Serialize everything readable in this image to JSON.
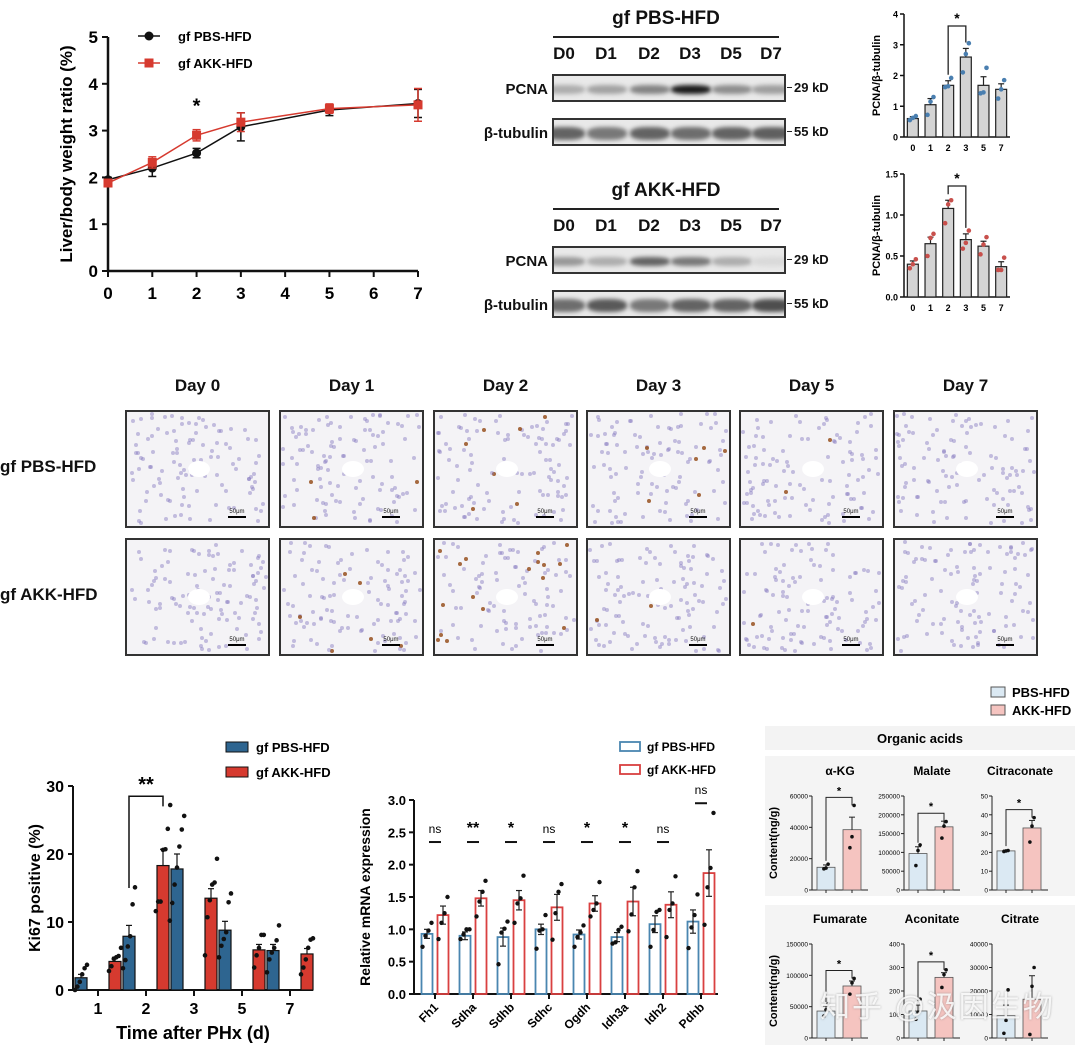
{
  "chart_data": [
    {
      "id": "liver-ratio",
      "type": "line",
      "title": "",
      "xlabel": "",
      "ylabel": "Liver/body weight ratio (%)",
      "x": [
        0,
        1,
        2,
        3,
        5,
        7
      ],
      "xticks": [
        "0",
        "1",
        "2",
        "3",
        "4",
        "5",
        "6",
        "7"
      ],
      "yticks": [
        "0",
        "1",
        "2",
        "3",
        "4",
        "5"
      ],
      "xlim": [
        0,
        7
      ],
      "ylim": [
        0,
        5
      ],
      "legend_position": "top-left",
      "series": [
        {
          "name": "gf PBS-HFD",
          "color": "#111111",
          "marker": "circle",
          "values": [
            1.95,
            2.2,
            2.52,
            3.08,
            3.44,
            3.58
          ],
          "err": [
            0.05,
            0.18,
            0.1,
            0.3,
            0.12,
            0.3
          ]
        },
        {
          "name": "gf AKK-HFD",
          "color": "#d63a2f",
          "marker": "square",
          "values": [
            1.88,
            2.32,
            2.9,
            3.18,
            3.47,
            3.55
          ],
          "err": [
            0.05,
            0.12,
            0.12,
            0.2,
            0.1,
            0.35
          ]
        }
      ],
      "annotations": [
        {
          "x": 2,
          "text": "*"
        }
      ]
    },
    {
      "id": "pcna-pbs",
      "type": "bar",
      "ylabel": "PCNA/β-tubulin",
      "categories": [
        "0",
        "1",
        "2",
        "3",
        "5",
        "7"
      ],
      "values": [
        0.6,
        1.05,
        1.68,
        2.6,
        1.68,
        1.55
      ],
      "err": [
        0.06,
        0.2,
        0.15,
        0.28,
        0.28,
        0.18
      ],
      "points": [
        [
          0.55,
          0.62,
          0.68
        ],
        [
          0.72,
          1.15,
          1.3
        ],
        [
          1.62,
          1.65,
          1.92
        ],
        [
          2.1,
          2.7,
          3.05
        ],
        [
          1.42,
          1.45,
          2.25
        ],
        [
          1.25,
          1.55,
          1.85
        ]
      ],
      "point_color": "#4a7fb0",
      "ylim": [
        0,
        4
      ],
      "yticks": [
        "0",
        "1",
        "2",
        "3",
        "4"
      ],
      "bracket": {
        "from": "2",
        "to": "3",
        "text": "*"
      }
    },
    {
      "id": "pcna-akk",
      "type": "bar",
      "ylabel": "PCNA/β-tubulin",
      "categories": [
        "0",
        "1",
        "2",
        "3",
        "5",
        "7"
      ],
      "values": [
        0.4,
        0.65,
        1.08,
        0.7,
        0.62,
        0.37
      ],
      "err": [
        0.04,
        0.08,
        0.1,
        0.07,
        0.06,
        0.06
      ],
      "points": [
        [
          0.35,
          0.4,
          0.46
        ],
        [
          0.5,
          0.72,
          0.77
        ],
        [
          0.9,
          1.13,
          1.18
        ],
        [
          0.59,
          0.66,
          0.81
        ],
        [
          0.52,
          0.64,
          0.73
        ],
        [
          0.33,
          0.33,
          0.48
        ]
      ],
      "point_color": "#c8504c",
      "ylim": [
        0,
        1.5
      ],
      "yticks": [
        "0.0",
        "0.5",
        "1.0",
        "1.5"
      ],
      "bracket": {
        "from": "2",
        "to": "3",
        "text": "*"
      }
    },
    {
      "id": "ki67",
      "type": "bar",
      "xlabel": "Time after PHx (d)",
      "ylabel": "Ki67 positive (%)",
      "categories": [
        "1",
        "2",
        "3",
        "5",
        "7"
      ],
      "ylim": [
        0,
        30
      ],
      "yticks": [
        "0",
        "10",
        "20",
        "30"
      ],
      "legend_position": "top-right",
      "series": [
        {
          "name": "gf PBS-HFD",
          "color": "#2e6590",
          "values": [
            1.8,
            7.9,
            17.8,
            8.8,
            5.8
          ],
          "err": [
            0.5,
            1.6,
            2.2,
            1.3,
            0.9
          ],
          "points": [
            [
              0,
              0.5,
              1.2,
              2.3,
              3.2,
              3.7
            ],
            [
              3.2,
              4.4,
              6.4,
              7.9,
              12.6,
              15.1
            ],
            [
              10.2,
              12.8,
              15.5,
              18,
              21.1,
              23.6,
              25.6
            ],
            [
              4.8,
              6.5,
              7.5,
              8.5,
              12.9,
              14.2
            ],
            [
              2.6,
              4.5,
              5.5,
              6.2,
              7.3,
              9.5
            ]
          ]
        },
        {
          "name": "gf AKK-HFD",
          "color": "#d63a2f",
          "values": [
            4.2,
            18.3,
            13.5,
            5.9,
            5.3
          ],
          "err": [
            0.6,
            2.4,
            1.4,
            0.8,
            0.8
          ],
          "points": [
            [
              2.8,
              3.5,
              4.6,
              4.8,
              5,
              6.2
            ],
            [
              11.6,
              13,
              13,
              20.6,
              20.7,
              23.7,
              27.2
            ],
            [
              5.1,
              10.7,
              13.2,
              15.5,
              15.8,
              19.3
            ],
            [
              3.3,
              5.1,
              6.2,
              8.1,
              8.1
            ],
            [
              2.3,
              3.3,
              4.5,
              6.2,
              7.4,
              7.6
            ]
          ]
        }
      ],
      "annotations": [
        {
          "x": "2",
          "text": "**"
        }
      ]
    },
    {
      "id": "mrna",
      "type": "bar",
      "ylabel": "Relative mRNA expression",
      "categories": [
        "Fh1",
        "Sdha",
        "Sdhb",
        "Sdhc",
        "Ogdh",
        "Idh3a",
        "Idh2",
        "Pdhb"
      ],
      "ylim": [
        0,
        3.0
      ],
      "yticks": [
        "0.0",
        "0.5",
        "1.0",
        "1.5",
        "2.0",
        "2.5",
        "3.0"
      ],
      "legend_position": "top-right",
      "series": [
        {
          "name": "gf PBS-HFD",
          "color": "#4a86b0",
          "values": [
            0.93,
            0.9,
            0.88,
            1.0,
            0.92,
            0.88,
            1.08,
            1.12
          ],
          "err": [
            0.07,
            0.06,
            0.14,
            0.08,
            0.07,
            0.07,
            0.13,
            0.18
          ],
          "points": [
            [
              0.73,
              0.9,
              0.98,
              1.1
            ],
            [
              0.85,
              0.92,
              1.0,
              1.0
            ],
            [
              0.46,
              0.95,
              1.01,
              1.12
            ],
            [
              0.7,
              0.98,
              1.0,
              1.22
            ],
            [
              0.73,
              0.88,
              0.95,
              1.06
            ],
            [
              0.78,
              0.8,
              0.99,
              1.04
            ],
            [
              0.73,
              0.99,
              1.27,
              1.3
            ],
            [
              0.71,
              1.03,
              1.22,
              1.54
            ]
          ]
        },
        {
          "name": "gf AKK-HFD",
          "color": "#d94040",
          "values": [
            1.22,
            1.48,
            1.45,
            1.34,
            1.4,
            1.43,
            1.38,
            1.87
          ],
          "err": [
            0.14,
            0.12,
            0.15,
            0.2,
            0.12,
            0.22,
            0.2,
            0.36
          ],
          "points": [
            [
              0.85,
              1.1,
              1.25,
              1.5
            ],
            [
              1.2,
              1.43,
              1.58,
              1.75
            ],
            [
              1.1,
              1.4,
              1.48,
              1.83
            ],
            [
              0.84,
              1.25,
              1.58,
              1.7
            ],
            [
              1.2,
              1.3,
              1.4,
              1.73
            ],
            [
              0.97,
              1.23,
              1.65,
              1.9
            ],
            [
              0.88,
              1.3,
              1.4,
              1.82
            ],
            [
              1.07,
              1.65,
              1.95,
              2.8
            ]
          ]
        }
      ],
      "significance": [
        "ns",
        "**",
        "*",
        "ns",
        "*",
        "*",
        "ns",
        "ns"
      ]
    },
    {
      "id": "organic-acids",
      "type": "bar",
      "title": "Organic acids",
      "ylabel": "Content(ng/g)",
      "legend": [
        {
          "name": "PBS-HFD",
          "color": "#dbe9f3"
        },
        {
          "name": "AKK-HFD",
          "color": "#f5c4c0"
        }
      ],
      "panels": [
        {
          "name": "α-KG",
          "ylim": [
            0,
            60000
          ],
          "yticks": [
            "0",
            "20000",
            "40000",
            "60000"
          ],
          "values": [
            14500,
            38500
          ],
          "err": [
            1500,
            8000
          ],
          "points": [
            [
              13500,
              14000,
              16500
            ],
            [
              27000,
              34000,
              54000
            ]
          ],
          "sig": "*"
        },
        {
          "name": "Malate",
          "ylim": [
            0,
            250000
          ],
          "yticks": [
            "0",
            "50000",
            "100000",
            "150000",
            "200000",
            "250000"
          ],
          "values": [
            97000,
            168000
          ],
          "err": [
            18000,
            15000
          ],
          "points": [
            [
              65000,
              105000,
              120000
            ],
            [
              138000,
              170000,
              182000
            ]
          ],
          "sig": "*"
        },
        {
          "name": "Citraconate",
          "ylim": [
            0,
            50
          ],
          "yticks": [
            "0",
            "10",
            "20",
            "30",
            "40",
            "50"
          ],
          "values": [
            20.8,
            33
          ],
          "err": [
            0.4,
            4
          ],
          "points": [
            [
              20.5,
              20.8,
              21
            ],
            [
              25.5,
              34,
              38.5
            ]
          ],
          "sig": "*"
        },
        {
          "name": "Fumarate",
          "ylim": [
            0,
            150000
          ],
          "yticks": [
            "0",
            "50000",
            "100000",
            "150000"
          ],
          "values": [
            43000,
            83000
          ],
          "err": [
            8000,
            8000
          ],
          "points": [
            [
              35000,
              45000,
              55000
            ],
            [
              70000,
              88000,
              95000
            ]
          ],
          "sig": "*"
        },
        {
          "name": "Aconitate",
          "ylim": [
            0,
            400
          ],
          "yticks": [
            "0",
            "100",
            "200",
            "300",
            "400"
          ],
          "values": [
            115,
            258
          ],
          "err": [
            25,
            20
          ],
          "points": [
            [
              80,
              110,
              165
            ],
            [
              215,
              270,
              290
            ]
          ],
          "sig": "*"
        },
        {
          "name": "Citrate",
          "ylim": [
            0,
            40000
          ],
          "yticks": [
            "0",
            "10000",
            "20000",
            "30000",
            "40000"
          ],
          "values": [
            9500,
            16500
          ],
          "err": [
            4500,
            10000
          ],
          "points": [
            [
              2000,
              7500,
              20500
            ],
            [
              1500,
              22000,
              30000
            ]
          ],
          "sig": ""
        }
      ]
    }
  ],
  "western_blot": {
    "groups": [
      {
        "title": "gf PBS-HFD",
        "lanes": [
          "D0",
          "D1",
          "D2",
          "D3",
          "D5",
          "D7"
        ],
        "rows": [
          {
            "label": "PCNA",
            "kd": "29 kD",
            "intensity": [
              0.25,
              0.3,
              0.45,
              0.95,
              0.4,
              0.32
            ]
          },
          {
            "label": "β-tubulin",
            "kd": "55 kD",
            "intensity": [
              0.6,
              0.5,
              0.6,
              0.55,
              0.6,
              0.62
            ]
          }
        ]
      },
      {
        "title": "gf AKK-HFD",
        "lanes": [
          "D0",
          "D1",
          "D2",
          "D3",
          "D5",
          "D7"
        ],
        "rows": [
          {
            "label": "PCNA",
            "kd": "29 kD",
            "intensity": [
              0.35,
              0.25,
              0.6,
              0.5,
              0.25,
              0.04
            ]
          },
          {
            "label": "β-tubulin",
            "kd": "55 kD",
            "intensity": [
              0.55,
              0.65,
              0.5,
              0.6,
              0.6,
              0.7
            ]
          }
        ]
      }
    ]
  },
  "histology": {
    "days": [
      "Day 0",
      "Day 1",
      "Day 2",
      "Day 3",
      "Day 5",
      "Day 7"
    ],
    "rows": [
      "gf PBS-HFD",
      "gf AKK-HFD"
    ],
    "scale_label": "50μm",
    "positive_density": [
      [
        0.0,
        0.01,
        0.04,
        0.03,
        0.01,
        0.0
      ],
      [
        0.0,
        0.05,
        0.15,
        0.01,
        0.01,
        0.0
      ]
    ]
  },
  "watermark": "知乎 @汲因生物"
}
